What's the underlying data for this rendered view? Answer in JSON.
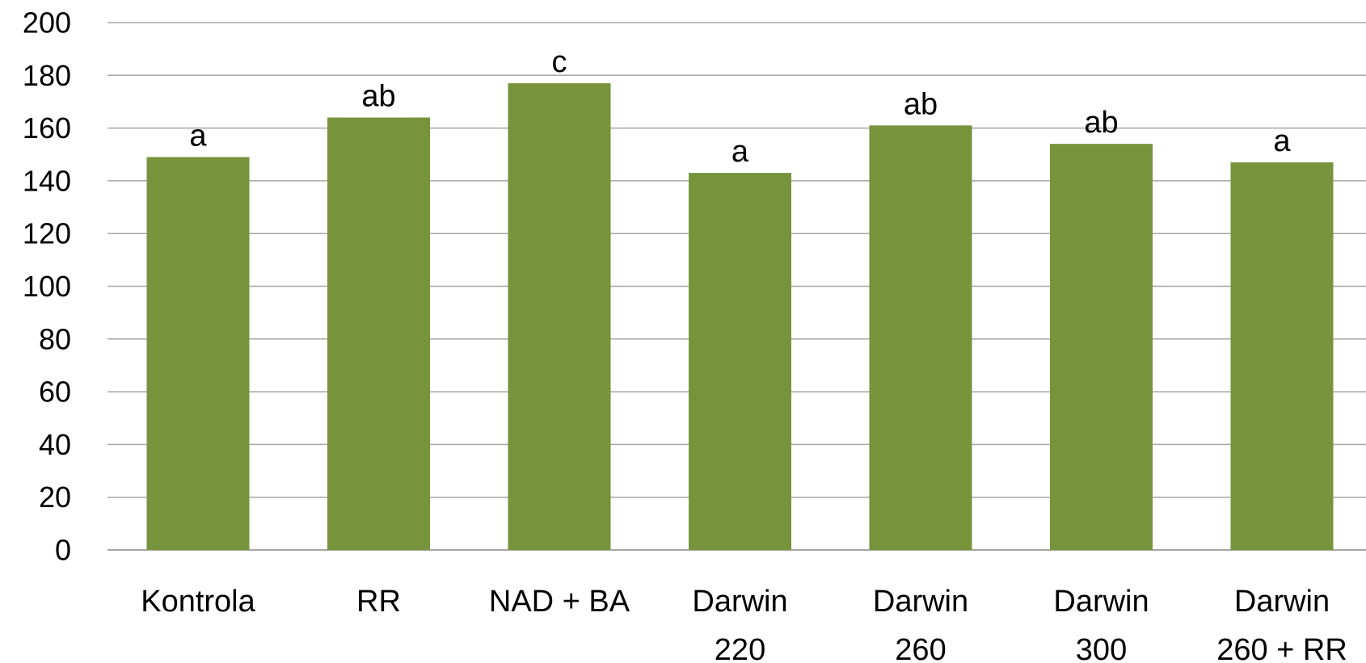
{
  "chart_data": {
    "type": "bar",
    "categories": [
      [
        "Kontrola"
      ],
      [
        "RR"
      ],
      [
        "NAD + BA"
      ],
      [
        "Darwin",
        "220"
      ],
      [
        "Darwin",
        "260"
      ],
      [
        "Darwin",
        "300"
      ],
      [
        "Darwin",
        "260 + RR"
      ]
    ],
    "values": [
      149,
      164,
      177,
      143,
      161,
      154,
      147
    ],
    "significance_labels": [
      "a",
      "ab",
      "c",
      "a",
      "ab",
      "ab",
      "a"
    ],
    "ylim": [
      0,
      200
    ],
    "yticks": [
      0,
      20,
      40,
      60,
      80,
      100,
      120,
      140,
      160,
      180,
      200
    ],
    "grid": true,
    "bar_color": "#77933c",
    "grid_color": "#a6a6a6"
  }
}
